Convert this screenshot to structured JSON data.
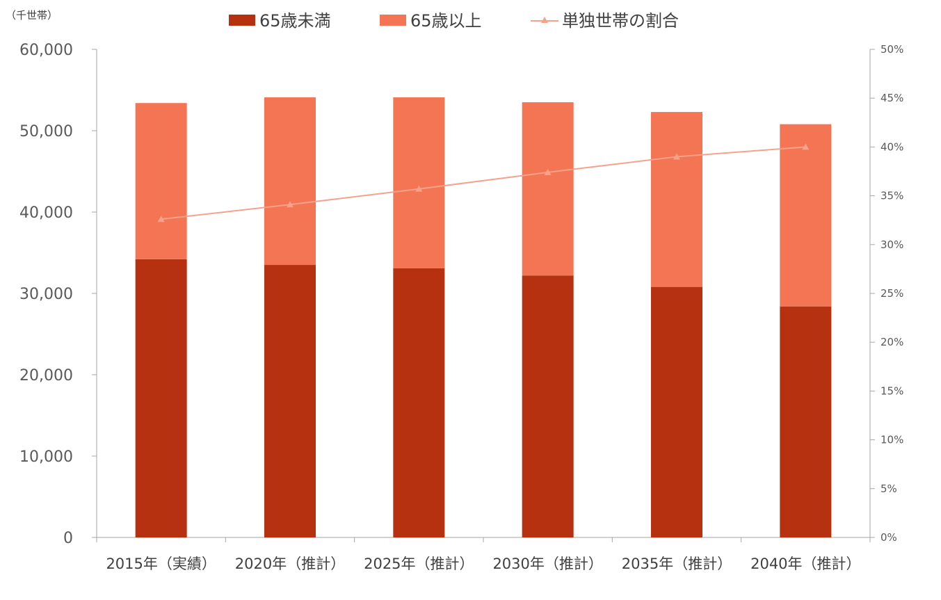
{
  "chart_data": {
    "type": "bar",
    "stacked": true,
    "y_unit_label": "（千世帯）",
    "categories": [
      "2015年（実績）",
      "2020年（推計）",
      "2025年（推計）",
      "2030年（推計）",
      "2035年（推計）",
      "2040年（推計）"
    ],
    "series": [
      {
        "name": "65歳未満",
        "type": "bar",
        "axis": "left",
        "color": "#b5310f",
        "values": [
          34200,
          33500,
          33100,
          32200,
          30800,
          28400
        ]
      },
      {
        "name": "65歳以上",
        "type": "bar",
        "axis": "left",
        "color": "#f47554",
        "values": [
          19200,
          20600,
          21000,
          21300,
          21500,
          22400
        ]
      },
      {
        "name": "単独世帯の割合",
        "type": "line",
        "axis": "right",
        "color": "#f4a28c",
        "marker": "triangle",
        "values": [
          32.6,
          34.1,
          35.7,
          37.4,
          39.0,
          40.0
        ]
      }
    ],
    "y_left": {
      "min": 0,
      "max": 60000,
      "ticks": [
        "0",
        "10,000",
        "20,000",
        "30,000",
        "40,000",
        "50,000",
        "60,000"
      ]
    },
    "y_right": {
      "min": 0,
      "max": 50,
      "ticks": [
        "0%",
        "5%",
        "10%",
        "15%",
        "20%",
        "25%",
        "30%",
        "35%",
        "40%",
        "45%",
        "50%"
      ]
    },
    "legend_position": "top",
    "grid": false
  }
}
